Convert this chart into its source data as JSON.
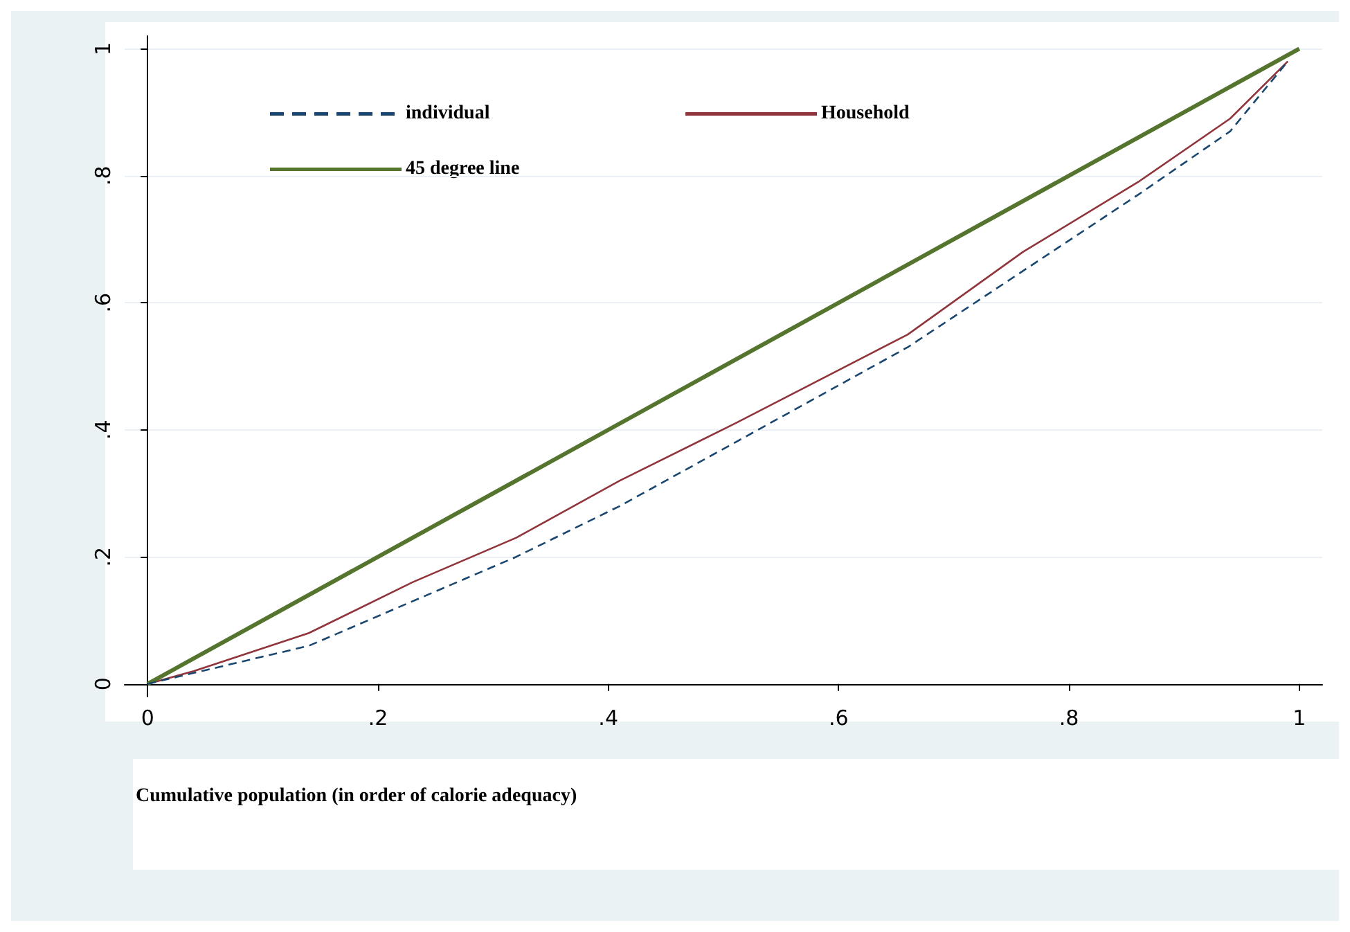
{
  "chart_data": {
    "type": "line",
    "xlabel": "Cumulative population (in order of calorie adequacy)",
    "xlim": [
      -0.02,
      1.02
    ],
    "ylim": [
      -0.02,
      1.02
    ],
    "xticks": [
      {
        "value": 0,
        "label": "0"
      },
      {
        "value": 0.2,
        "label": ".2"
      },
      {
        "value": 0.4,
        "label": ".4"
      },
      {
        "value": 0.6,
        "label": ".6"
      },
      {
        "value": 0.8,
        "label": ".8"
      },
      {
        "value": 1,
        "label": "1"
      }
    ],
    "yticks": [
      {
        "value": 0,
        "label": "0"
      },
      {
        "value": 0.2,
        "label": ".2"
      },
      {
        "value": 0.4,
        "label": ".4"
      },
      {
        "value": 0.6,
        "label": ".6"
      },
      {
        "value": 0.8,
        "label": ".8"
      },
      {
        "value": 1,
        "label": "1"
      }
    ],
    "grid": "y",
    "legend": "top left",
    "marker": "none",
    "series": [
      {
        "name": "individual",
        "color": "#1a476f",
        "line_style": "dashed",
        "x": [
          0,
          0.14,
          0.23,
          0.32,
          0.41,
          0.51,
          0.66,
          0.76,
          0.86,
          0.94,
          0.99
        ],
        "values": [
          0,
          0.06,
          0.13,
          0.2,
          0.28,
          0.38,
          0.53,
          0.65,
          0.77,
          0.87,
          0.98
        ]
      },
      {
        "name": "Household",
        "color": "#90353b",
        "line_style": "solid",
        "x": [
          0,
          0.04,
          0.14,
          0.23,
          0.32,
          0.41,
          0.51,
          0.66,
          0.76,
          0.86,
          0.94,
          0.99
        ],
        "values": [
          0,
          0.02,
          0.08,
          0.16,
          0.23,
          0.32,
          0.41,
          0.55,
          0.68,
          0.79,
          0.89,
          0.98
        ]
      },
      {
        "name": "45 degree line",
        "color": "#55752f",
        "line_style": "solid",
        "x": [
          0,
          1
        ],
        "values": [
          0,
          1
        ]
      }
    ]
  }
}
